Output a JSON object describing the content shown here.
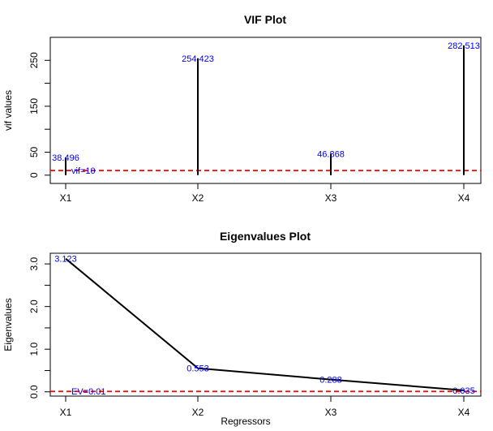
{
  "chart_data": [
    {
      "type": "bar",
      "title": "VIF Plot",
      "xlabel": "",
      "ylabel": "vif values",
      "categories": [
        "X1",
        "X2",
        "X3",
        "X4"
      ],
      "values": [
        38.496,
        254.423,
        46.868,
        282.513
      ],
      "value_labels": [
        "38.496",
        "254.423",
        "46.868",
        "282.513"
      ],
      "ylim": [
        -18,
        300
      ],
      "yticks": [
        0,
        50,
        150,
        250
      ],
      "ytick_labels": [
        "0",
        "50",
        "150",
        "250"
      ],
      "reference_line": {
        "value": 10,
        "label": "vif=10",
        "color": "#ff0000"
      },
      "bar_color": "#000000",
      "label_color": "#0000ee"
    },
    {
      "type": "line",
      "title": "Eigenvalues Plot",
      "xlabel": "Regressors",
      "ylabel": "Eigenvalues",
      "categories": [
        "X1",
        "X2",
        "X3",
        "X4"
      ],
      "values": [
        3.123,
        0.553,
        0.288,
        0.035
      ],
      "value_labels": [
        "3.123",
        "0.553",
        "0.288",
        "0.035"
      ],
      "ylim": [
        -0.1,
        3.25
      ],
      "yticks": [
        0.0,
        1.0,
        2.0,
        3.0
      ],
      "ytick_labels": [
        "0.0",
        "1.0",
        "2.0",
        "3.0"
      ],
      "minor_yticks": [
        0.5,
        1.5,
        2.5
      ],
      "reference_line": {
        "value": 0.01,
        "label": "EV=0.01",
        "color": "#ff0000"
      },
      "line_color": "#000000",
      "label_color": "#0000ee"
    }
  ]
}
